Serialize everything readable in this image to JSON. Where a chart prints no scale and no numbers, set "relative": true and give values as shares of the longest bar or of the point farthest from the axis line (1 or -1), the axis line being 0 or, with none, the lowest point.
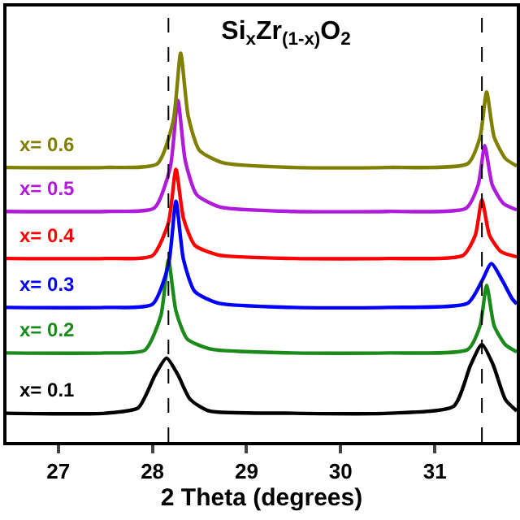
{
  "chart_data": {
    "type": "line",
    "title": "Si$_{x}$Zr$_{(1-x)}$O$_{2}$",
    "xlabel": "2 Theta (degrees)",
    "relative": true,
    "xlim": [
      26.45,
      31.87
    ],
    "xticks": [
      27,
      28,
      29,
      30,
      31
    ],
    "legend": false,
    "marker": "none",
    "line_style": "solid",
    "ref_lines": [
      {
        "axis": "x",
        "value": 28.17,
        "color": "#000000",
        "line_style": "dashed"
      },
      {
        "axis": "x",
        "value": 31.5,
        "color": "#000000",
        "line_style": "dashed"
      }
    ],
    "series": [
      {
        "name": "x= 0.1",
        "color": "#000000",
        "x": [
          26.45,
          27.5,
          27.85,
          28.03,
          28.15,
          28.27,
          28.4,
          28.6,
          29.5,
          30.5,
          31.2,
          31.38,
          31.5,
          31.62,
          31.75,
          31.87
        ],
        "values": [
          0.074,
          0.074,
          0.088,
          0.173,
          0.216,
          0.173,
          0.11,
          0.08,
          0.074,
          0.074,
          0.092,
          0.198,
          0.251,
          0.198,
          0.109,
          0.08
        ]
      },
      {
        "name": "x= 0.2",
        "color": "#1a8a1a",
        "x": [
          26.45,
          27.5,
          27.92,
          28.09,
          28.17,
          28.25,
          28.37,
          28.62,
          29.5,
          30.5,
          31.35,
          31.48,
          31.55,
          31.63,
          31.75,
          31.87
        ],
        "values": [
          0.229,
          0.229,
          0.236,
          0.325,
          0.468,
          0.337,
          0.265,
          0.239,
          0.229,
          0.229,
          0.238,
          0.299,
          0.403,
          0.299,
          0.25,
          0.232
        ]
      },
      {
        "name": "x= 0.3",
        "color": "#0000ff",
        "x": [
          26.45,
          27.5,
          28.0,
          28.17,
          28.25,
          28.33,
          28.45,
          28.7,
          29.5,
          30.5,
          31.35,
          31.5,
          31.6,
          31.72,
          31.82,
          31.87
        ],
        "values": [
          0.346,
          0.346,
          0.354,
          0.455,
          0.619,
          0.469,
          0.387,
          0.357,
          0.346,
          0.346,
          0.357,
          0.414,
          0.459,
          0.414,
          0.369,
          0.355
        ]
      },
      {
        "name": "x= 0.4",
        "color": "#ff0000",
        "x": [
          26.45,
          27.5,
          28.0,
          28.17,
          28.25,
          28.33,
          28.45,
          28.7,
          29.5,
          30.5,
          31.3,
          31.43,
          31.5,
          31.58,
          31.7,
          31.87
        ],
        "values": [
          0.472,
          0.472,
          0.479,
          0.564,
          0.701,
          0.575,
          0.506,
          0.481,
          0.472,
          0.472,
          0.48,
          0.532,
          0.623,
          0.532,
          0.49,
          0.476
        ]
      },
      {
        "name": "x= 0.5",
        "color": "#b01adb",
        "x": [
          26.45,
          27.5,
          28.02,
          28.19,
          28.27,
          28.35,
          28.47,
          28.72,
          29.5,
          30.5,
          31.33,
          31.46,
          31.53,
          31.61,
          31.73,
          31.87
        ],
        "values": [
          0.593,
          0.593,
          0.602,
          0.707,
          0.879,
          0.722,
          0.636,
          0.604,
          0.593,
          0.593,
          0.601,
          0.661,
          0.762,
          0.661,
          0.613,
          0.597
        ]
      },
      {
        "name": "x= 0.6",
        "color": "#808000",
        "x": [
          26.45,
          27.5,
          28.05,
          28.22,
          28.3,
          28.38,
          28.5,
          28.75,
          29.5,
          30.5,
          31.35,
          31.48,
          31.55,
          31.63,
          31.75,
          31.87
        ],
        "values": [
          0.706,
          0.706,
          0.715,
          0.824,
          1.0,
          0.838,
          0.75,
          0.718,
          0.706,
          0.706,
          0.716,
          0.784,
          0.9,
          0.784,
          0.729,
          0.71
        ]
      }
    ]
  }
}
